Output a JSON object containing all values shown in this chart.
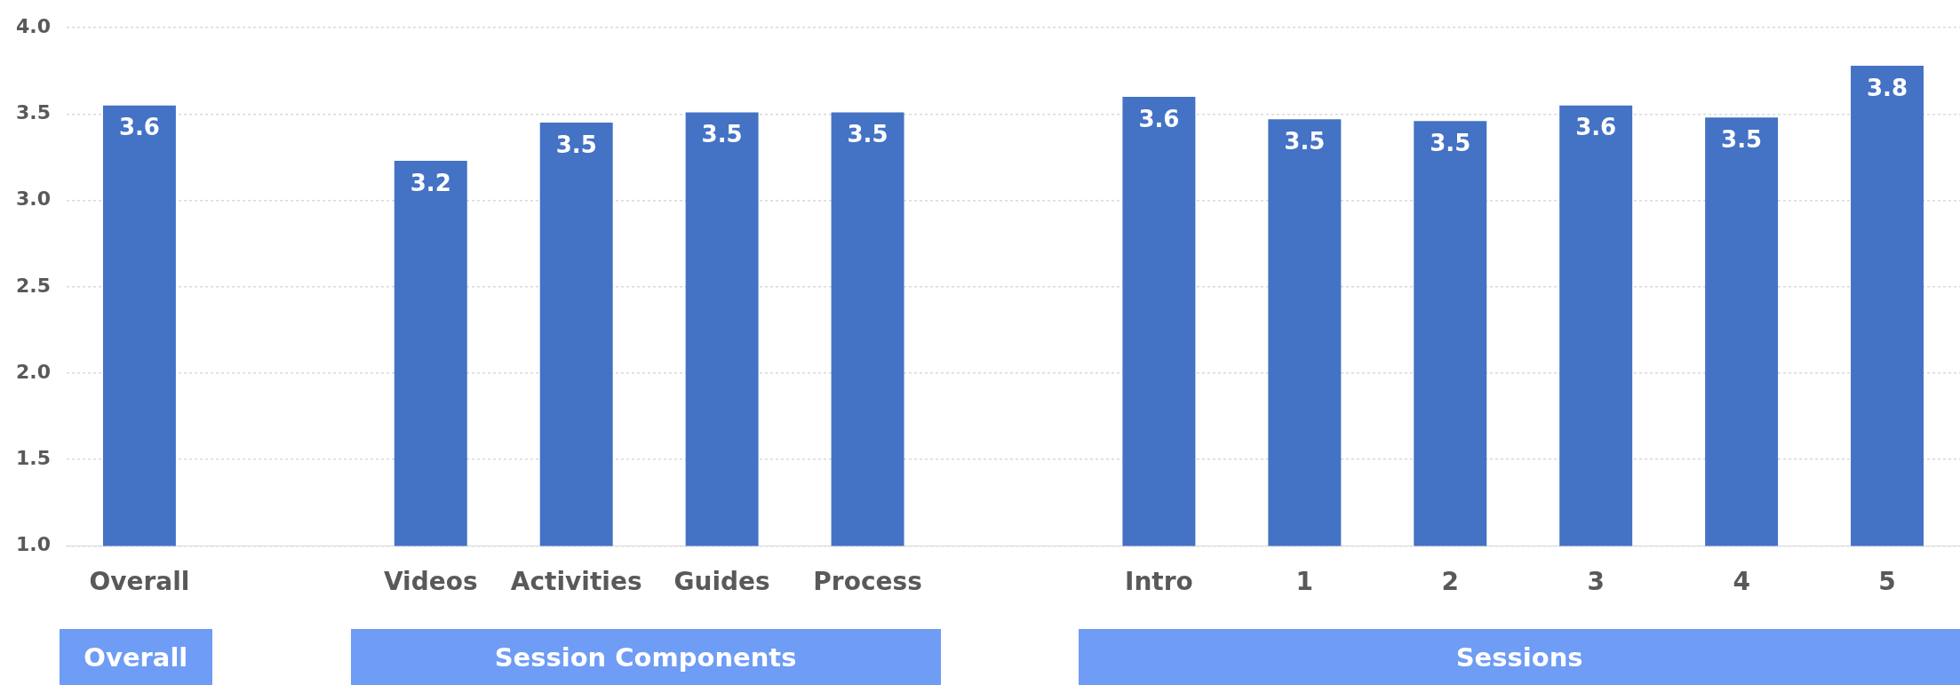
{
  "chart_data": {
    "type": "bar",
    "categories": [
      "Overall",
      null,
      "Videos",
      "Activities",
      "Guides",
      "Process",
      null,
      "Intro",
      "1",
      "2",
      "3",
      "4",
      "5"
    ],
    "values": [
      3.55,
      null,
      3.23,
      3.45,
      3.51,
      3.51,
      null,
      3.6,
      3.47,
      3.46,
      3.55,
      3.48,
      3.78
    ],
    "value_labels": [
      "3.6",
      null,
      "3.2",
      "3.5",
      "3.5",
      "3.5",
      null,
      "3.6",
      "3.5",
      "3.5",
      "3.6",
      "3.5",
      "3.8"
    ],
    "color": "#4472c4",
    "ylim": [
      1,
      4
    ],
    "yticks": [
      {
        "value": 1,
        "label": "1.0"
      },
      {
        "value": 1.5,
        "label": "1.5"
      },
      {
        "value": 2,
        "label": "2.0"
      },
      {
        "value": 2.5,
        "label": "2.5"
      },
      {
        "value": 3,
        "label": "3.0"
      },
      {
        "value": 3.5,
        "label": "3.5"
      },
      {
        "value": 4,
        "label": "4.0"
      }
    ],
    "grid": "y",
    "legend": false,
    "annotations": [
      "Overall",
      "Session Components",
      "Sessions"
    ]
  }
}
